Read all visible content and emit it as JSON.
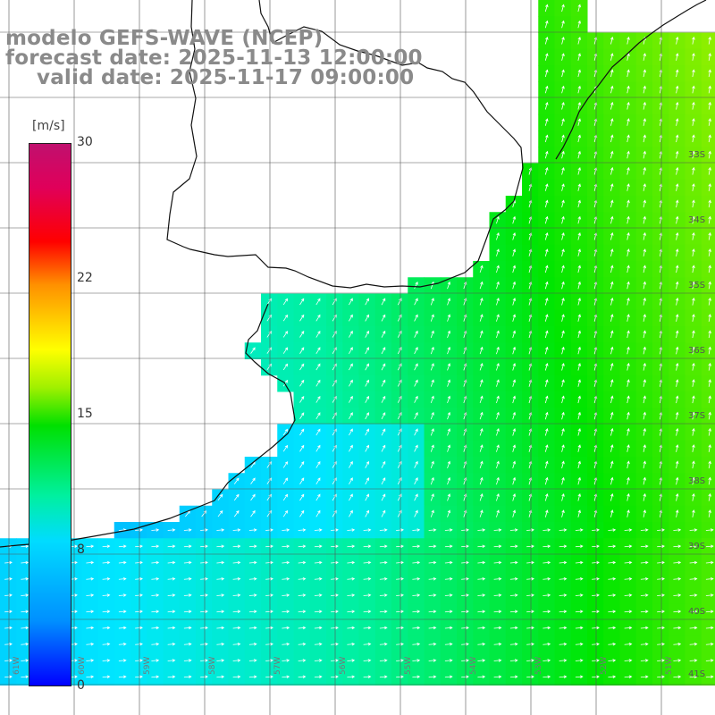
{
  "title": {
    "line1": "modelo GEFS-WAVE (NCEP)",
    "line2": "forecast date: 2025-11-13 12:00:00",
    "line3": "valid date: 2025-11-17 09:00:00"
  },
  "colorbar": {
    "unit": "[m/s]",
    "ticks": [
      "30",
      "22",
      "15",
      "8",
      "0"
    ],
    "tick_values": [
      30,
      22,
      15,
      8,
      0
    ],
    "range": [
      0,
      30
    ],
    "colors": [
      "#0000ff",
      "#0090ff",
      "#00dcff",
      "#00f0a0",
      "#00e000",
      "#a0f000",
      "#ffff00",
      "#ff9000",
      "#ff0000",
      "#e0005a",
      "#c0106e"
    ]
  },
  "lat_labels": [
    "33S",
    "34S",
    "35S",
    "36S",
    "37S",
    "38S",
    "39S",
    "40S",
    "41S"
  ],
  "lon_labels": [
    "61W",
    "60W",
    "59W",
    "58W",
    "57W",
    "56W",
    "55W",
    "54W",
    "53W",
    "52W",
    "51W"
  ],
  "colors": {
    "land": "#ffffff",
    "coast": "#111111",
    "grid": "#555555",
    "title": "#8a8a8a",
    "arrow": "#ffffff"
  }
}
